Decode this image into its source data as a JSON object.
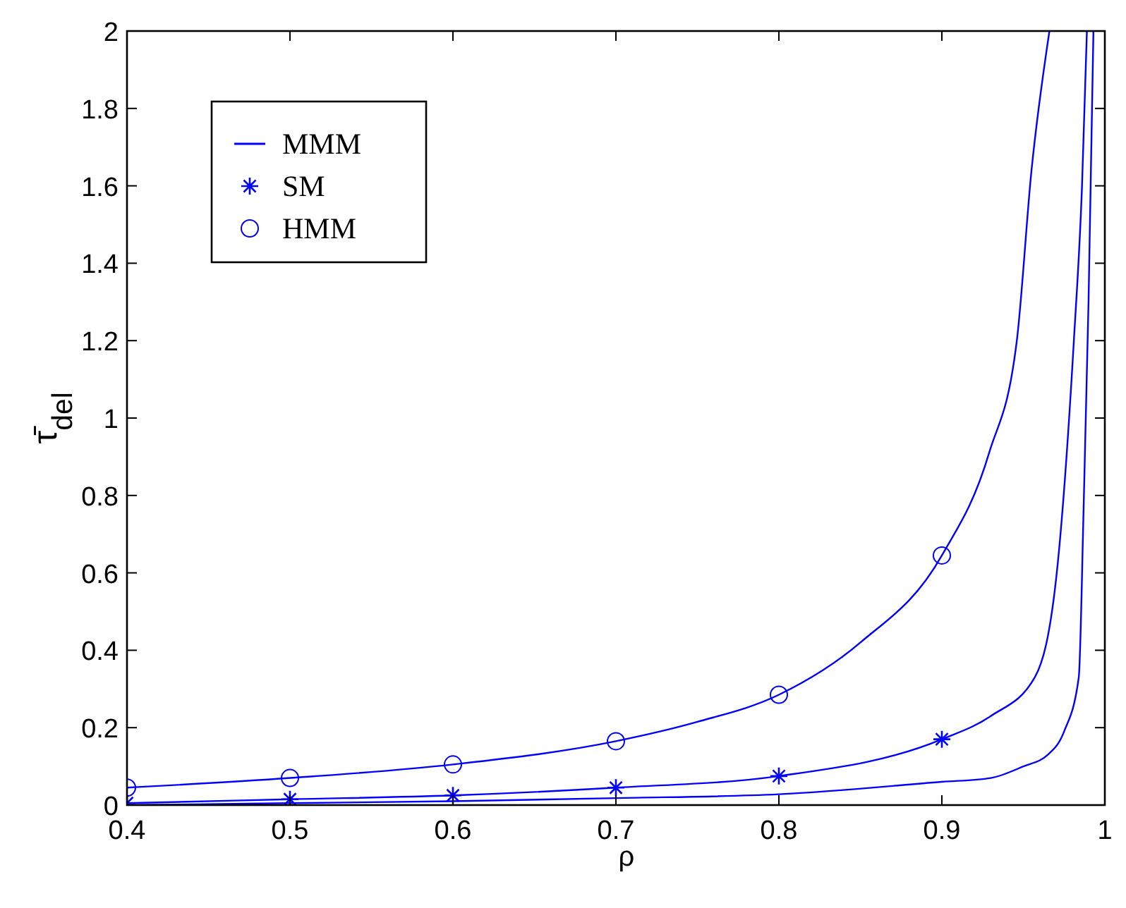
{
  "chart_data": {
    "type": "line",
    "xlabel": "ρ",
    "ylabel": "τ̄$_{del}$",
    "xlim": [
      0.4,
      1
    ],
    "xticks": [
      0.4,
      0.5,
      0.6,
      0.7,
      0.8,
      0.9,
      1
    ],
    "ylim": [
      0,
      2
    ],
    "yticks": [
      0,
      0.2,
      0.4,
      0.6,
      0.8,
      1,
      1.2,
      1.4,
      1.6,
      1.8,
      2
    ],
    "grid": false,
    "legend": "top left",
    "series": [
      {
        "name": "MMM",
        "color": "#0000ff",
        "marker": "none",
        "x": [
          0.4,
          0.5,
          0.6,
          0.7,
          0.8,
          0.9,
          0.93,
          0.95,
          0.965,
          0.975,
          0.984,
          0.987,
          0.99,
          0.993
        ],
        "values": [
          0.0,
          0.005,
          0.01,
          0.018,
          0.028,
          0.06,
          0.07,
          0.1,
          0.13,
          0.19,
          0.33,
          0.77,
          1.3,
          2
        ]
      },
      {
        "color": "#0000ff",
        "marker": "none",
        "x": [
          0.4,
          0.5,
          0.6,
          0.7,
          0.8,
          0.9,
          0.93,
          0.957,
          0.971,
          0.981,
          0.986,
          0.989
        ],
        "values": [
          0.005,
          0.015,
          0.025,
          0.045,
          0.075,
          0.17,
          0.23,
          0.33,
          0.62,
          1.2,
          1.6,
          2
        ]
      },
      {
        "name": "SM",
        "type": "scatter",
        "color": "#0000ff",
        "marker": "cross",
        "x": [
          0.4,
          0.5,
          0.6,
          0.7,
          0.8,
          0.9
        ],
        "values": [
          0.005,
          0.015,
          0.025,
          0.045,
          0.075,
          0.17
        ]
      },
      {
        "color": "#0000ff",
        "marker": "none",
        "x": [
          0.4,
          0.5,
          0.6,
          0.7,
          0.75,
          0.8,
          0.85,
          0.9,
          0.929,
          0.946,
          0.955,
          0.966
        ],
        "values": [
          0.045,
          0.07,
          0.105,
          0.165,
          0.215,
          0.285,
          0.42,
          0.645,
          0.91,
          1.2,
          1.64,
          2
        ]
      },
      {
        "name": "HMM",
        "type": "scatter",
        "color": "#0000ff",
        "marker": "circle",
        "x": [
          0.4,
          0.5,
          0.6,
          0.7,
          0.8,
          0.9
        ],
        "values": [
          0.045,
          0.07,
          0.105,
          0.165,
          0.285,
          0.645
        ]
      }
    ]
  }
}
